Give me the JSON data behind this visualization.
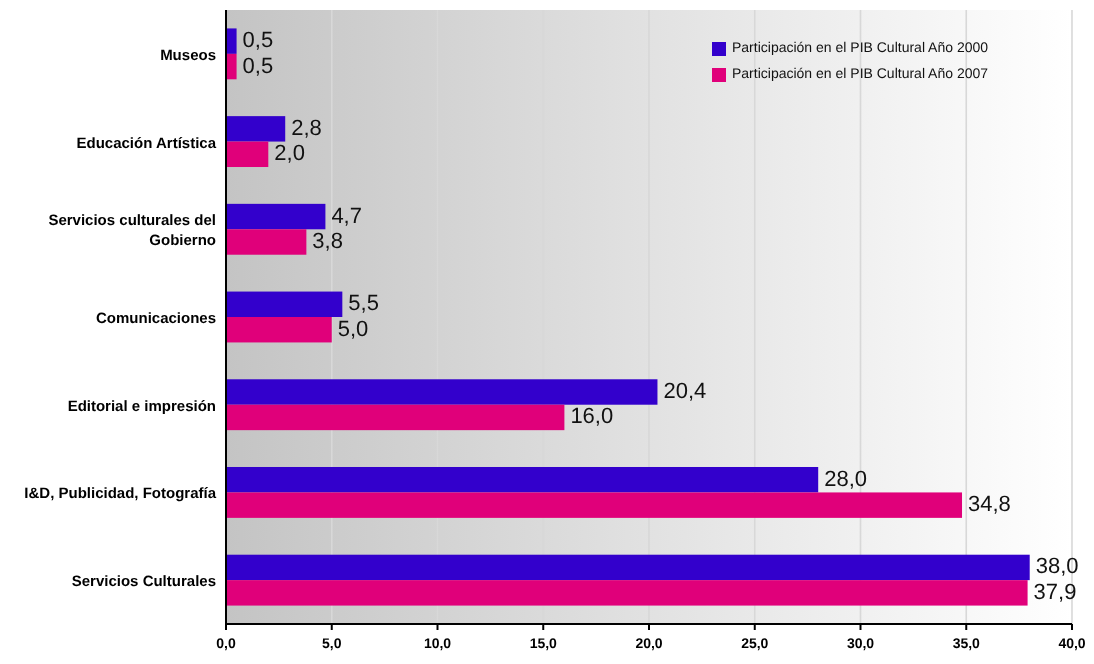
{
  "chart_data": {
    "type": "bar",
    "orientation": "horizontal",
    "categories": [
      "Museos",
      "Educación Artística",
      "Servicios culturales del Gobierno",
      "Comunicaciones",
      "Editorial e impresión",
      "I&D, Publicidad, Fotografía",
      "Servicios Culturales"
    ],
    "series": [
      {
        "name": "Participación en el PIB Cultural Año 2000",
        "color": "#3300cc",
        "values": [
          0.5,
          2.8,
          4.7,
          5.5,
          20.4,
          28.0,
          38.0
        ],
        "value_labels": [
          "0,5",
          "2,8",
          "4,7",
          "5,5",
          "20,4",
          "28,0",
          "38,0"
        ]
      },
      {
        "name": "Participación en el PIB Cultural Año 2007",
        "color": "#e0007a",
        "values": [
          0.5,
          2.0,
          3.8,
          5.0,
          16.0,
          34.8,
          37.9
        ],
        "value_labels": [
          "0,5",
          "2,0",
          "3,8",
          "5,0",
          "16,0",
          "34,8",
          "37,9"
        ]
      }
    ],
    "xlim": [
      0,
      40
    ],
    "xticks": [
      {
        "value": 0,
        "label": "0,0"
      },
      {
        "value": 5,
        "label": "5,0"
      },
      {
        "value": 10,
        "label": "10,0"
      },
      {
        "value": 15,
        "label": "15,0"
      },
      {
        "value": 20,
        "label": "20,0"
      },
      {
        "value": 25,
        "label": "25,0"
      },
      {
        "value": 30,
        "label": "30,0"
      },
      {
        "value": 35,
        "label": "35,0"
      },
      {
        "value": 40,
        "label": "40,0"
      }
    ],
    "grid": "x",
    "legend": "top right"
  }
}
